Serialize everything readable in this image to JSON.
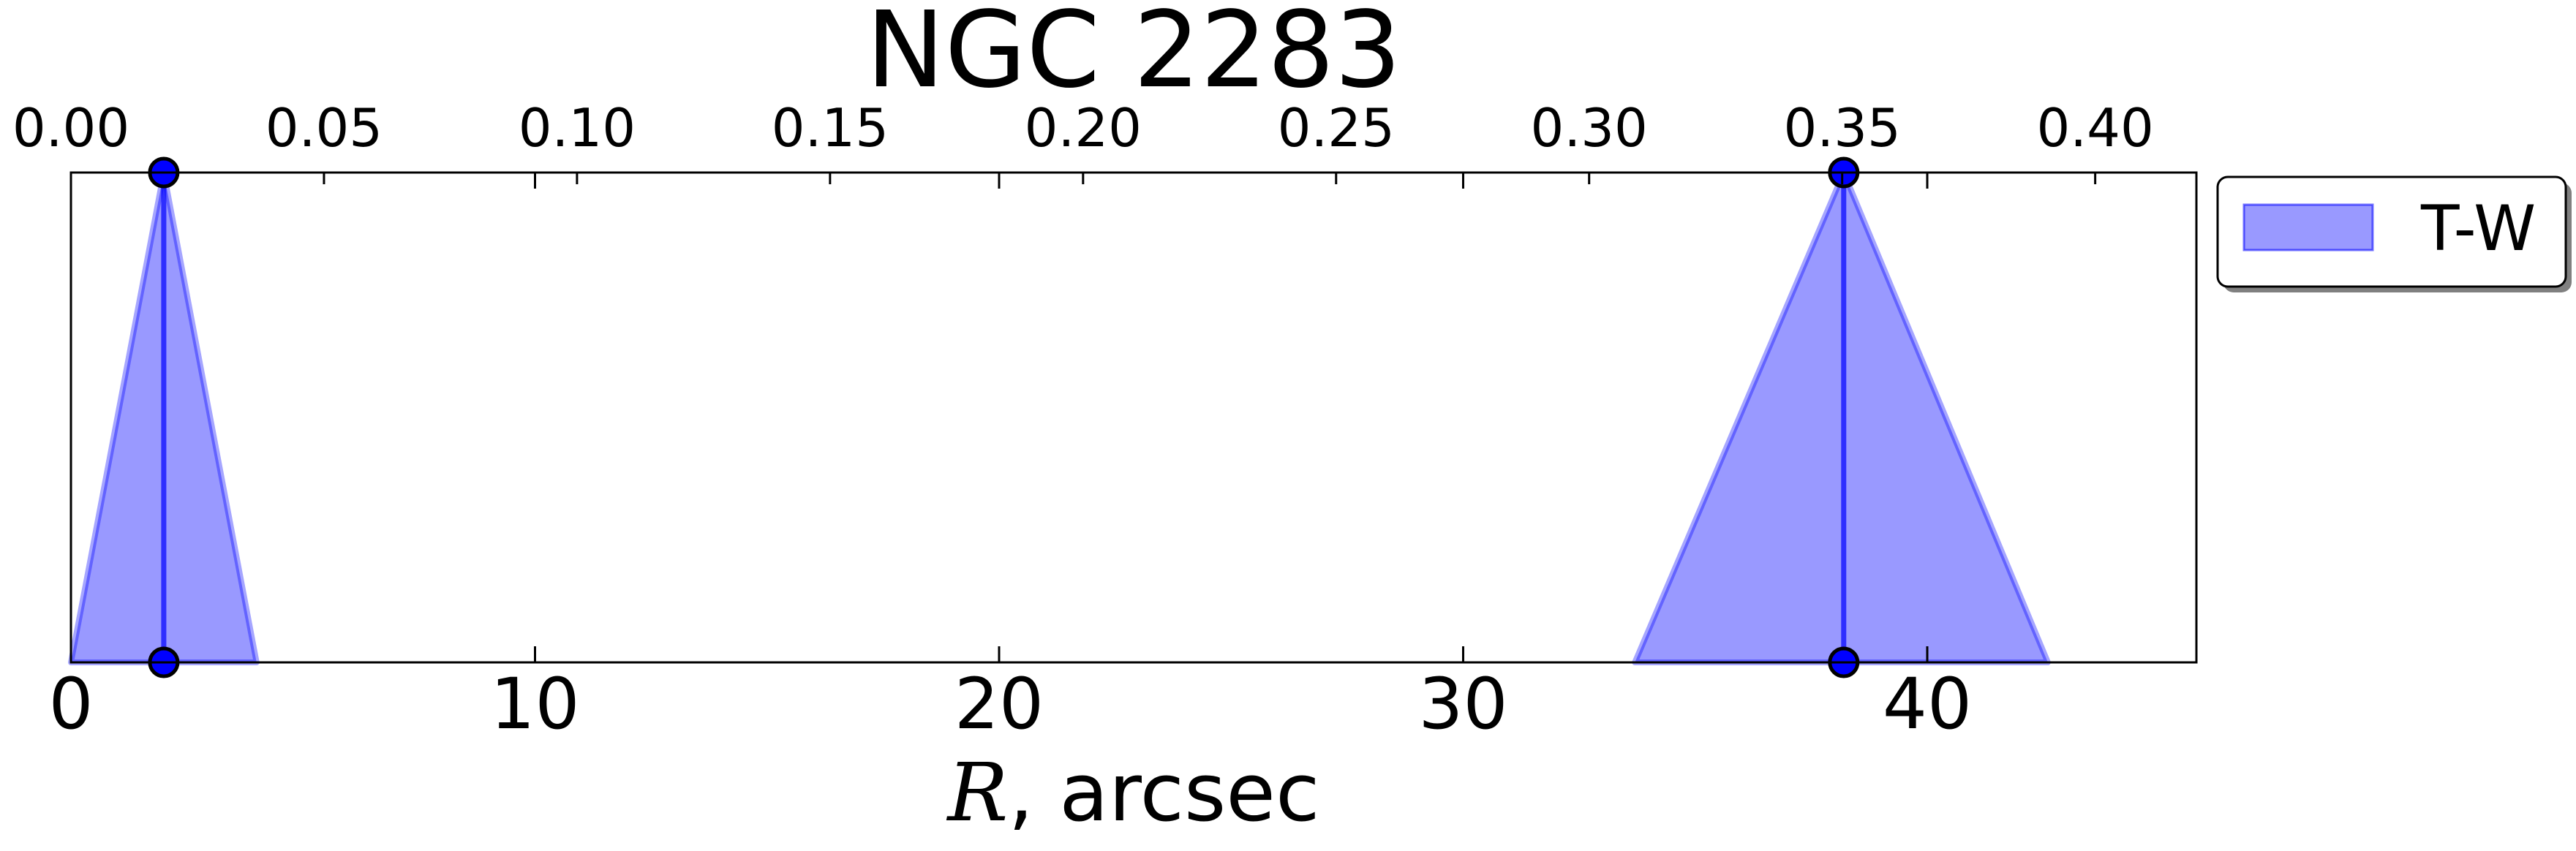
{
  "chart_data": {
    "type": "area",
    "title": "NGC 2283",
    "xlabel": {
      "variable": "R",
      "rest": ", arcsec"
    },
    "x_bottom": {
      "lim": [
        0,
        45.8
      ],
      "ticks": [
        0,
        10,
        20,
        30,
        40
      ],
      "tick_labels": [
        "0",
        "10",
        "20",
        "30",
        "40"
      ]
    },
    "x_top": {
      "lim": [
        0,
        0.42
      ],
      "ticks": [
        0.0,
        0.05,
        0.1,
        0.15,
        0.2,
        0.25,
        0.3,
        0.35,
        0.4
      ],
      "tick_labels": [
        "0.00",
        "0.05",
        "0.10",
        "0.15",
        "0.20",
        "0.25",
        "0.30",
        "0.35",
        "0.40"
      ]
    },
    "ylim": [
      0,
      1
    ],
    "y_ticks_visible": false,
    "grid": false,
    "legend": {
      "placement": "outside-top-right",
      "entries": [
        "T-W"
      ]
    },
    "series": [
      {
        "name": "T-W",
        "color": "#0000ff",
        "fill_alpha": 0.4,
        "regions": [
          {
            "center": 2.0,
            "left": 0.0,
            "right": 4.0
          },
          {
            "center": 38.2,
            "left": 33.7,
            "right": 42.6
          }
        ],
        "points": [
          {
            "x": 2.0,
            "y": 1
          },
          {
            "x": 2.0,
            "y": 0
          },
          {
            "x": 38.2,
            "y": 1
          },
          {
            "x": 38.2,
            "y": 0
          }
        ]
      }
    ]
  }
}
